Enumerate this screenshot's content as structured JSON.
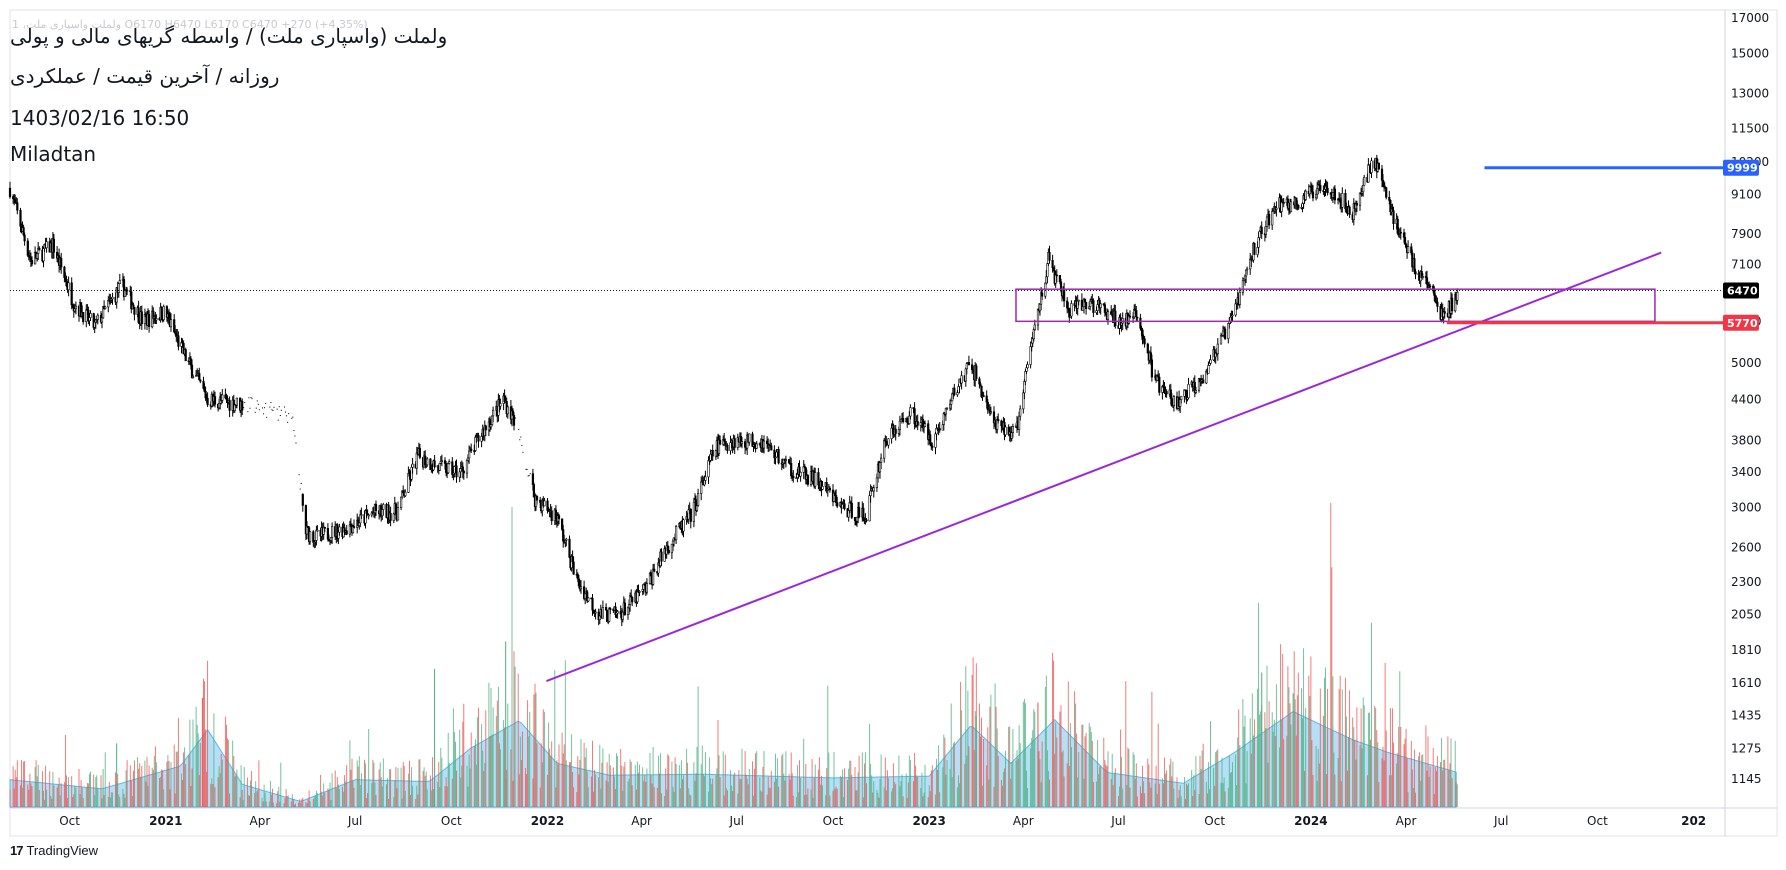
{
  "header": {
    "ohlc": "1 ،ولملت ‌واسپاری ملت  O6170  H6470  L6170  C6470  +270 (+4.35%)",
    "title": "ولملت (واسپاری ملت) / واسطه گریهای مالی و پولی",
    "subtitle": "روزانه / آخرین قیمت / عملکردی",
    "datetime": "1403/02/16 16:50",
    "author": "Miladtan"
  },
  "brand": {
    "logo": "17",
    "name": "TradingView"
  },
  "colors": {
    "background": "#ffffff",
    "candles": "#000000",
    "trendline": "#9c27d9",
    "zone": "#9c27b0",
    "resistance": "#2962ff",
    "support": "#f23645",
    "volume_up": "#4caf80",
    "volume_down": "#ef5350",
    "volume_ma": "#5cb7ee"
  },
  "chart_data": {
    "type": "candlestick",
    "y_scale": "log",
    "ylim": [
      1000,
      17000
    ],
    "y_ticks": [
      17000,
      15000,
      13000,
      11500,
      10200,
      9100,
      7900,
      7100,
      5800,
      5000,
      4400,
      3800,
      3400,
      3000,
      2600,
      2300,
      2050,
      1810,
      1610,
      1435,
      1275,
      1145
    ],
    "x_range": [
      "2020-08-05",
      "2025-01-31"
    ],
    "x_ticks": [
      {
        "date": "2020-10-01",
        "label": "Oct",
        "year": false
      },
      {
        "date": "2021-01-01",
        "label": "2021",
        "year": true
      },
      {
        "date": "2021-04-01",
        "label": "Apr",
        "year": false
      },
      {
        "date": "2021-07-01",
        "label": "Jul",
        "year": false
      },
      {
        "date": "2021-10-01",
        "label": "Oct",
        "year": false
      },
      {
        "date": "2022-01-01",
        "label": "2022",
        "year": true
      },
      {
        "date": "2022-04-01",
        "label": "Apr",
        "year": false
      },
      {
        "date": "2022-07-01",
        "label": "Jul",
        "year": false
      },
      {
        "date": "2022-10-01",
        "label": "Oct",
        "year": false
      },
      {
        "date": "2023-01-01",
        "label": "2023",
        "year": true
      },
      {
        "date": "2023-04-01",
        "label": "Apr",
        "year": false
      },
      {
        "date": "2023-07-01",
        "label": "Jul",
        "year": false
      },
      {
        "date": "2023-10-01",
        "label": "Oct",
        "year": false
      },
      {
        "date": "2024-01-01",
        "label": "2024",
        "year": true
      },
      {
        "date": "2024-04-01",
        "label": "Apr",
        "year": false
      },
      {
        "date": "2024-07-01",
        "label": "Jul",
        "year": false
      },
      {
        "date": "2024-10-01",
        "label": "Oct",
        "year": false
      },
      {
        "date": "2025-01-01",
        "label": "202",
        "year": true
      }
    ],
    "price_path": [
      [
        "2020-08-05",
        9300
      ],
      [
        "2020-08-25",
        7200
      ],
      [
        "2020-09-15",
        7600
      ],
      [
        "2020-10-05",
        6200
      ],
      [
        "2020-10-25",
        5700
      ],
      [
        "2020-11-20",
        6600
      ],
      [
        "2020-12-10",
        5800
      ],
      [
        "2020-12-31",
        6000
      ],
      [
        "2021-01-20",
        5100
      ],
      [
        "2021-02-10",
        4400
      ],
      [
        "2021-03-25",
        4300
      ],
      [
        "2021-05-01",
        4150
      ],
      [
        "2021-05-15",
        2750
      ],
      [
        "2021-05-25",
        2700
      ],
      [
        "2021-06-25",
        2800
      ],
      [
        "2021-07-20",
        2950
      ],
      [
        "2021-08-10",
        2950
      ],
      [
        "2021-08-30",
        3600
      ],
      [
        "2021-09-20",
        3450
      ],
      [
        "2021-10-10",
        3400
      ],
      [
        "2021-10-30",
        3900
      ],
      [
        "2021-11-20",
        4400
      ],
      [
        "2021-11-30",
        4100
      ],
      [
        "2021-12-20",
        3100
      ],
      [
        "2022-01-10",
        2900
      ],
      [
        "2022-01-30",
        2300
      ],
      [
        "2022-02-20",
        2050
      ],
      [
        "2022-03-10",
        2050
      ],
      [
        "2022-04-05",
        2250
      ],
      [
        "2022-04-25",
        2600
      ],
      [
        "2022-05-20",
        2950
      ],
      [
        "2022-06-10",
        3700
      ],
      [
        "2022-06-25",
        3800
      ],
      [
        "2022-07-25",
        3800
      ],
      [
        "2022-08-20",
        3450
      ],
      [
        "2022-09-15",
        3300
      ],
      [
        "2022-10-10",
        3000
      ],
      [
        "2022-11-01",
        2900
      ],
      [
        "2022-11-20",
        3800
      ],
      [
        "2022-12-15",
        4200
      ],
      [
        "2023-01-05",
        3800
      ],
      [
        "2023-01-25",
        4500
      ],
      [
        "2023-02-10",
        5000
      ],
      [
        "2023-03-05",
        4000
      ],
      [
        "2023-03-25",
        3900
      ],
      [
        "2023-04-10",
        5500
      ],
      [
        "2023-04-25",
        7200
      ],
      [
        "2023-05-15",
        6000
      ],
      [
        "2023-06-05",
        6200
      ],
      [
        "2023-06-30",
        5800
      ],
      [
        "2023-07-20",
        5900
      ],
      [
        "2023-08-05",
        4700
      ],
      [
        "2023-08-25",
        4300
      ],
      [
        "2023-09-20",
        4800
      ],
      [
        "2023-10-15",
        5700
      ],
      [
        "2023-11-10",
        7700
      ],
      [
        "2023-11-30",
        8800
      ],
      [
        "2023-12-20",
        8800
      ],
      [
        "2024-01-15",
        9500
      ],
      [
        "2024-02-10",
        8500
      ],
      [
        "2024-03-01",
        10400
      ],
      [
        "2024-03-20",
        8400
      ],
      [
        "2024-04-10",
        7000
      ],
      [
        "2024-04-25",
        6500
      ],
      [
        "2024-05-05",
        5900
      ],
      [
        "2024-05-20",
        6300
      ]
    ],
    "last_close": 6470,
    "price_labels": [
      {
        "value": 9999,
        "text": "9999",
        "color": "#2962ff"
      },
      {
        "value": 6470,
        "text": "6470",
        "color": "#000000"
      },
      {
        "value": 5770,
        "text": "5770",
        "color": "#f23645"
      }
    ],
    "drawings": {
      "trendline": {
        "start": [
          "2021-12-31",
          1620
        ],
        "end": [
          "2024-12-01",
          7400
        ]
      },
      "zone": {
        "from": "2023-03-25",
        "to": "2024-11-25",
        "top": 6500,
        "bottom": 5800
      },
      "resistance_line": {
        "value": 9999,
        "from": "2024-06-15",
        "to": "2025-01-31"
      },
      "support_line": {
        "value": 5770,
        "from": "2024-05-10",
        "to": "2025-01-31"
      }
    },
    "volume": {
      "scale_max": 2200000,
      "ma_path": [
        [
          "2020-08-05",
          300000
        ],
        [
          "2020-11-01",
          200000
        ],
        [
          "2021-01-15",
          450000
        ],
        [
          "2021-02-10",
          850000
        ],
        [
          "2021-03-15",
          250000
        ],
        [
          "2021-05-10",
          60000
        ],
        [
          "2021-07-01",
          300000
        ],
        [
          "2021-09-10",
          280000
        ],
        [
          "2021-10-20",
          650000
        ],
        [
          "2021-12-05",
          950000
        ],
        [
          "2022-01-10",
          480000
        ],
        [
          "2022-03-01",
          350000
        ],
        [
          "2022-06-01",
          360000
        ],
        [
          "2022-10-01",
          320000
        ],
        [
          "2023-01-01",
          340000
        ],
        [
          "2023-02-10",
          900000
        ],
        [
          "2023-03-20",
          480000
        ],
        [
          "2023-05-01",
          960000
        ],
        [
          "2023-06-20",
          380000
        ],
        [
          "2023-09-01",
          260000
        ],
        [
          "2023-10-20",
          600000
        ],
        [
          "2023-12-15",
          1050000
        ],
        [
          "2024-02-10",
          740000
        ],
        [
          "2024-03-15",
          600000
        ],
        [
          "2024-05-20",
          380000
        ]
      ],
      "spikes": [
        [
          "2021-11-22",
          1820000
        ],
        [
          "2021-09-15",
          1520000
        ],
        [
          "2021-02-05",
          1200000
        ],
        [
          "2023-11-15",
          1480000
        ],
        [
          "2023-12-15",
          1250000
        ],
        [
          "2023-04-15",
          1150000
        ],
        [
          "2020-11-15",
          700000
        ],
        [
          "2023-02-15",
          1000000
        ]
      ]
    }
  }
}
